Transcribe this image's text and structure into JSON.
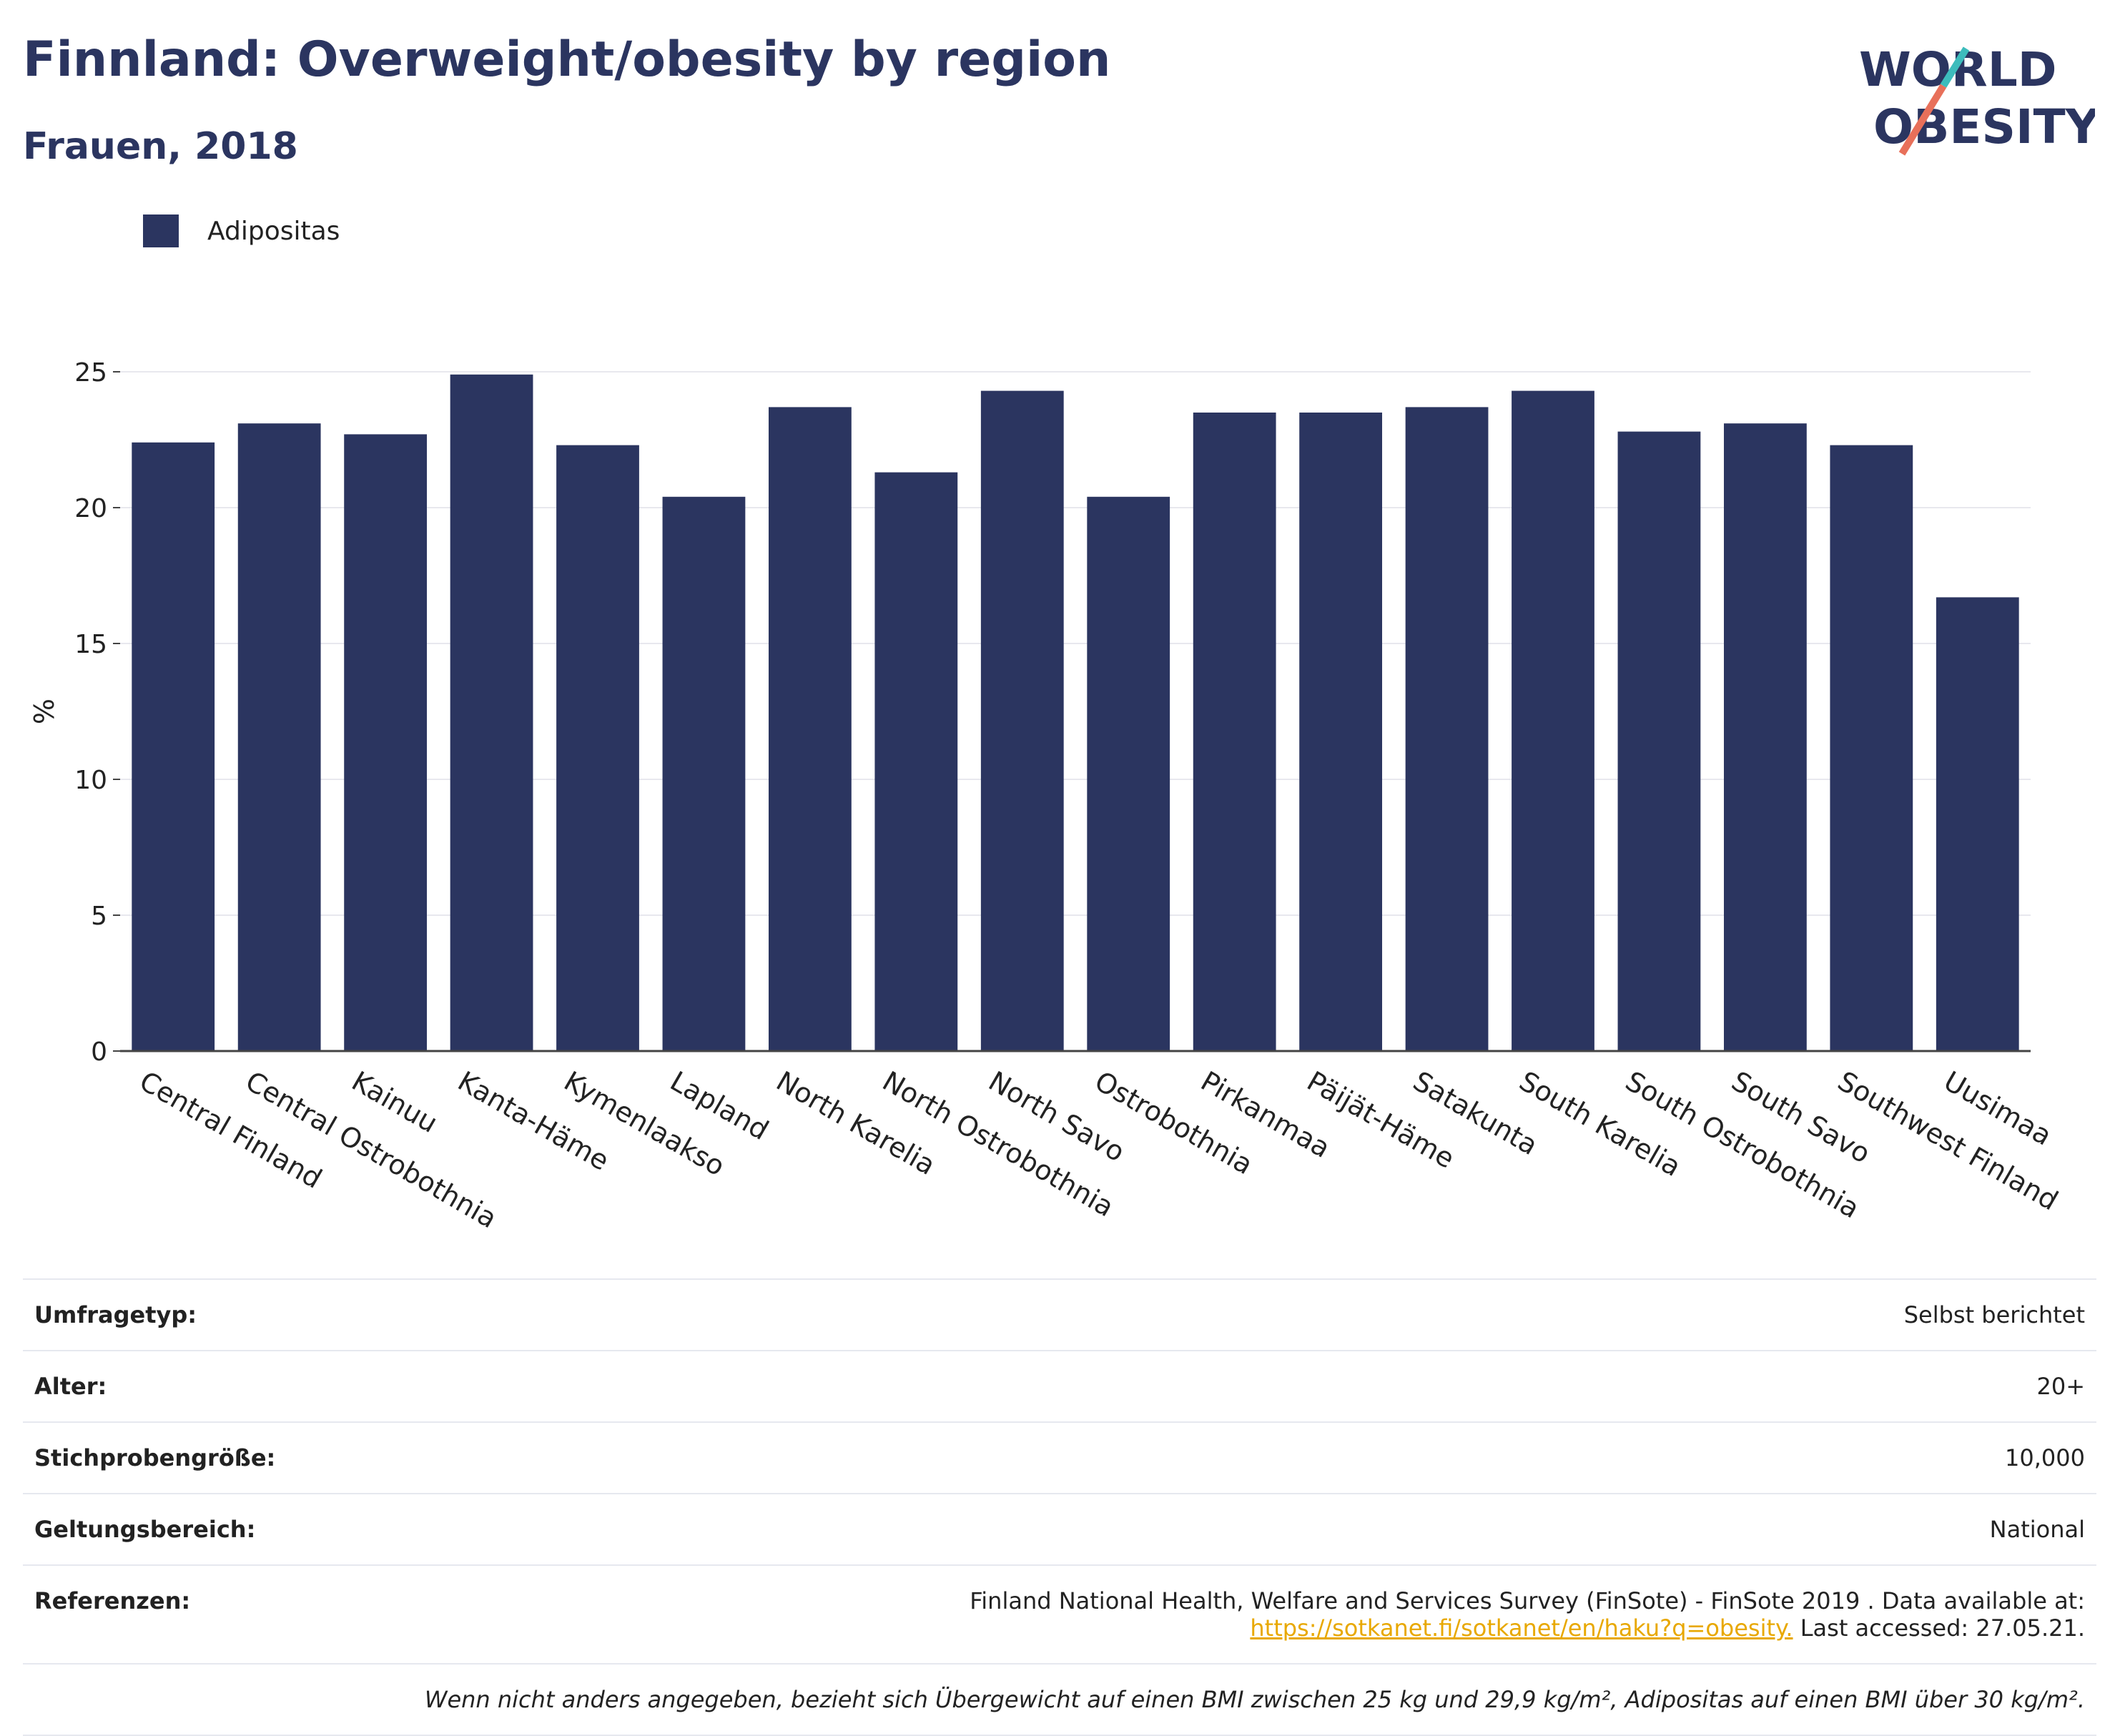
{
  "header": {
    "title": "Finnland: Overweight/obesity by region",
    "subtitle": "Frauen, 2018"
  },
  "logo": {
    "line1": "WORLD",
    "line2": "OBESITY"
  },
  "legend": {
    "label": "Adipositas",
    "color": "#2b3560"
  },
  "chart_data": {
    "type": "bar",
    "categories": [
      "Central Finland",
      "Central Ostrobothnia",
      "Kainuu",
      "Kanta-Häme",
      "Kymenlaakso",
      "Lapland",
      "North Karelia",
      "North Ostrobothnia",
      "North Savo",
      "Ostrobothnia",
      "Pirkanmaa",
      "Päijät-Häme",
      "Satakunta",
      "South Karelia",
      "South Ostrobothnia",
      "South Savo",
      "Southwest Finland",
      "Uusimaa"
    ],
    "series": [
      {
        "name": "Adipositas",
        "color": "#2b3560",
        "values": [
          22.4,
          23.1,
          22.7,
          24.9,
          22.3,
          20.4,
          23.7,
          21.3,
          24.3,
          20.4,
          23.5,
          23.5,
          23.7,
          24.3,
          22.8,
          23.1,
          22.3,
          16.7
        ]
      }
    ],
    "ylabel": "%",
    "ylim": [
      0,
      25
    ],
    "yticks": [
      0,
      5,
      10,
      15,
      20,
      25
    ],
    "grid": true
  },
  "info": [
    {
      "key": "Umfragetyp:",
      "value": "Selbst berichtet"
    },
    {
      "key": "Alter:",
      "value": "20+"
    },
    {
      "key": "Stichprobengröße:",
      "value": "10,000"
    },
    {
      "key": "Geltungsbereich:",
      "value": "National"
    }
  ],
  "references": {
    "key": "Referenzen:",
    "text1": "Finland National Health, Welfare and Services Survey (FinSote) - FinSote 2019 . Data available at:",
    "link": "https://sotkanet.fi/sotkanet/en/haku?q=obesity.",
    "text2": " Last accessed: 27.05.21."
  },
  "note": "Wenn nicht anders angegeben, bezieht sich Übergewicht auf einen BMI zwischen 25 kg und 29,9 kg/m², Adipositas auf einen BMI über 30 kg/m²."
}
